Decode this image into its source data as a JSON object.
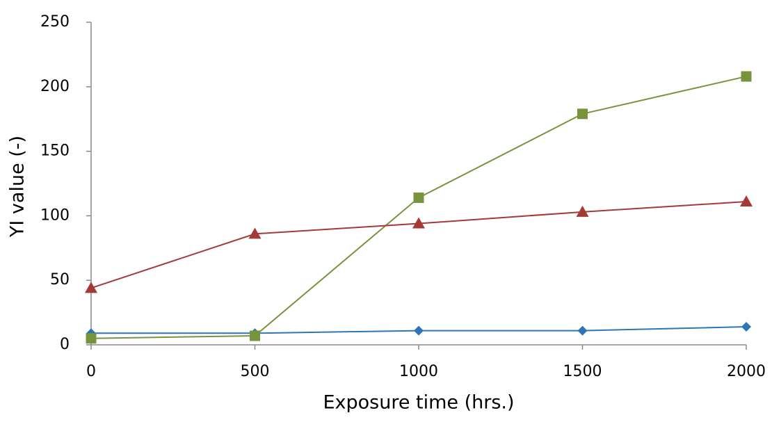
{
  "chart_data": {
    "type": "line",
    "x_label": "Exposure time (hrs.)",
    "y_label": "YI value (-)",
    "x": [
      0,
      500,
      1000,
      1500,
      2000
    ],
    "series": [
      {
        "color": "#2e75b6",
        "marker": "diamond",
        "values": [
          9,
          9,
          11,
          11,
          14
        ]
      },
      {
        "color": "#77933c",
        "marker": "square",
        "values": [
          5,
          7,
          114,
          179,
          208
        ]
      },
      {
        "color": "#a33a36",
        "marker": "triangle",
        "values": [
          44,
          86,
          94,
          103,
          111
        ]
      }
    ],
    "xlim": [
      0,
      2000
    ],
    "xticks": [
      0,
      500,
      1000,
      1500,
      2000
    ],
    "ylim": [
      0,
      250
    ],
    "yticks": [
      0,
      50,
      100,
      150,
      200,
      250
    ],
    "grid": false
  }
}
